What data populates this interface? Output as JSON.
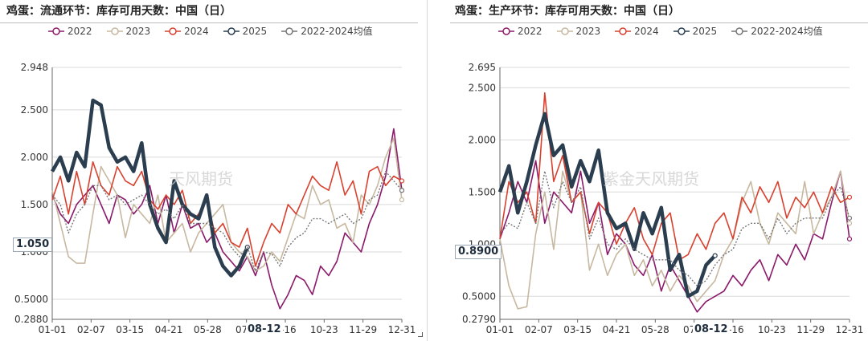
{
  "chart_data": [
    {
      "type": "line",
      "title": "鸡蛋：流通环节：库存可用天数：中国（日）",
      "x_ticks": [
        "01-01",
        "02-07",
        "03-15",
        "04-21",
        "05-28",
        "07-0",
        "8-16",
        "10-23",
        "11-29",
        "12-31"
      ],
      "y_ticks": [
        "0.2880",
        "0.5000",
        "1.000",
        "1.500",
        "2.000",
        "2.500",
        "2.948"
      ],
      "ylim": [
        0.288,
        2.948
      ],
      "highlight_value": "1.050",
      "highlight_date": "08-12",
      "watermark": "天风期货",
      "series": [
        {
          "name": "2022",
          "color": "#8b1a6b",
          "values": [
            1.6,
            1.4,
            1.3,
            1.5,
            1.6,
            1.7,
            1.5,
            1.3,
            1.6,
            1.55,
            1.4,
            1.5,
            1.7,
            1.3,
            1.6,
            1.2,
            1.5,
            1.25,
            1.3,
            1.1,
            1.2,
            1.0,
            0.9,
            0.8,
            0.95,
            0.75,
            1.0,
            0.65,
            0.4,
            0.55,
            0.75,
            0.7,
            0.55,
            0.85,
            0.75,
            0.9,
            1.2,
            1.1,
            1.0,
            1.3,
            1.5,
            1.8,
            2.3,
            1.65
          ]
        },
        {
          "name": "2023",
          "color": "#c7b8a0",
          "values": [
            1.65,
            1.3,
            0.95,
            0.88,
            0.88,
            1.4,
            1.9,
            1.75,
            1.6,
            1.15,
            1.5,
            1.4,
            1.3,
            1.6,
            1.1,
            1.2,
            1.3,
            1.0,
            1.2,
            1.3,
            1.4,
            1.5,
            1.1,
            1.0,
            0.95,
            0.8,
            0.85,
            1.0,
            0.9,
            1.15,
            1.4,
            1.35,
            1.7,
            1.5,
            1.55,
            1.25,
            1.3,
            1.1,
            1.6,
            1.5,
            1.7,
            2.0,
            2.2,
            1.55
          ]
        },
        {
          "name": "2024",
          "color": "#d9412f",
          "values": [
            1.55,
            1.8,
            1.4,
            1.85,
            1.5,
            1.95,
            1.7,
            1.6,
            1.9,
            1.75,
            1.7,
            1.85,
            1.55,
            1.45,
            1.6,
            1.5,
            1.65,
            1.3,
            1.4,
            1.55,
            1.2,
            1.3,
            1.1,
            1.05,
            1.25,
            0.85,
            1.1,
            1.3,
            1.2,
            1.5,
            1.4,
            1.6,
            1.8,
            1.7,
            1.65,
            1.95,
            1.6,
            1.75,
            1.4,
            1.85,
            1.9,
            1.7,
            1.8,
            1.75
          ]
        },
        {
          "name": "2025",
          "color": "#2b3e50",
          "values": [
            1.85,
            2.0,
            1.75,
            2.05,
            1.9,
            2.6,
            2.55,
            2.1,
            1.95,
            2.0,
            1.85,
            2.15,
            1.5,
            1.25,
            1.1,
            1.75,
            1.5,
            1.4,
            1.35,
            1.6,
            1.05,
            0.85,
            0.75,
            0.85,
            1.05
          ]
        },
        {
          "name": "2022-2024均值",
          "color": "#777777",
          "values": [
            1.6,
            1.5,
            1.2,
            1.4,
            1.5,
            1.7,
            1.7,
            1.55,
            1.6,
            1.5,
            1.55,
            1.6,
            1.5,
            1.4,
            1.45,
            1.35,
            1.5,
            1.3,
            1.3,
            1.3,
            1.25,
            1.2,
            1.05,
            0.95,
            1.05,
            0.8,
            1.0,
            0.98,
            0.85,
            1.05,
            1.15,
            1.2,
            1.35,
            1.35,
            1.3,
            1.35,
            1.4,
            1.3,
            1.35,
            1.55,
            1.6,
            1.85,
            1.75,
            1.65
          ]
        }
      ]
    },
    {
      "type": "line",
      "title": "鸡蛋：生产环节：库存可用天数：中国（日）",
      "x_ticks": [
        "01-01",
        "02-07",
        "03-15",
        "04-21",
        "05-28",
        "07-0",
        "8-16",
        "10-23",
        "11-29",
        "12-31"
      ],
      "y_ticks": [
        "0.2790",
        "0.5000",
        "1.000",
        "1.500",
        "2.000",
        "2.500",
        "2.695"
      ],
      "ylim": [
        0.279,
        2.695
      ],
      "highlight_value": "0.8900",
      "highlight_date": "08-12",
      "watermark": "紫金天风期货",
      "series": [
        {
          "name": "2022",
          "color": "#8b1a6b",
          "values": [
            1.05,
            1.3,
            1.6,
            1.4,
            1.8,
            1.2,
            1.5,
            1.4,
            1.3,
            1.7,
            1.2,
            1.4,
            0.9,
            1.1,
            1.0,
            0.8,
            0.7,
            0.9,
            0.55,
            0.8,
            0.65,
            0.5,
            0.35,
            0.45,
            0.5,
            0.55,
            0.7,
            0.6,
            0.75,
            0.85,
            0.65,
            0.9,
            0.8,
            1.0,
            0.85,
            1.1,
            1.05,
            1.4,
            1.7,
            1.05
          ]
        },
        {
          "name": "2023",
          "color": "#c7b8a0",
          "values": [
            1.05,
            0.6,
            0.38,
            0.4,
            1.1,
            1.5,
            0.95,
            1.7,
            1.4,
            1.5,
            0.75,
            1.0,
            0.7,
            0.9,
            1.0,
            0.7,
            0.85,
            0.6,
            0.75,
            0.55,
            0.7,
            0.6,
            0.45,
            0.55,
            0.65,
            0.9,
            1.05,
            1.4,
            1.6,
            1.2,
            1.0,
            1.3,
            1.2,
            1.1,
            1.6,
            1.1,
            1.3,
            1.45,
            1.7,
            1.2
          ]
        },
        {
          "name": "2024",
          "color": "#d9412f",
          "values": [
            1.05,
            1.6,
            1.4,
            1.5,
            1.2,
            2.45,
            1.6,
            1.85,
            1.4,
            1.5,
            1.1,
            1.4,
            1.3,
            1.0,
            1.2,
            1.35,
            1.05,
            0.9,
            1.2,
            1.3,
            0.85,
            0.9,
            1.1,
            0.95,
            1.2,
            1.3,
            1.05,
            1.45,
            1.3,
            1.55,
            1.4,
            1.6,
            1.25,
            1.45,
            1.35,
            1.5,
            1.3,
            1.55,
            1.4,
            1.45
          ]
        },
        {
          "name": "2025",
          "color": "#2b3e50",
          "values": [
            1.5,
            1.75,
            1.3,
            1.6,
            1.95,
            2.25,
            1.85,
            1.95,
            1.55,
            1.8,
            1.6,
            1.9,
            1.3,
            1.15,
            1.2,
            0.95,
            1.3,
            1.1,
            1.35,
            0.75,
            0.9,
            0.5,
            0.55,
            0.8,
            0.89
          ]
        },
        {
          "name": "2022-2024均值",
          "color": "#777777",
          "values": [
            1.1,
            1.2,
            1.15,
            1.4,
            1.2,
            1.7,
            1.35,
            1.6,
            1.4,
            1.55,
            1.05,
            1.25,
            1.0,
            0.95,
            1.05,
            0.95,
            0.9,
            0.85,
            0.85,
            0.85,
            0.75,
            0.7,
            0.6,
            0.65,
            0.8,
            0.9,
            0.95,
            1.15,
            1.2,
            1.2,
            1.05,
            1.25,
            1.1,
            1.2,
            1.25,
            1.25,
            1.25,
            1.45,
            1.55,
            1.25
          ]
        }
      ]
    }
  ]
}
